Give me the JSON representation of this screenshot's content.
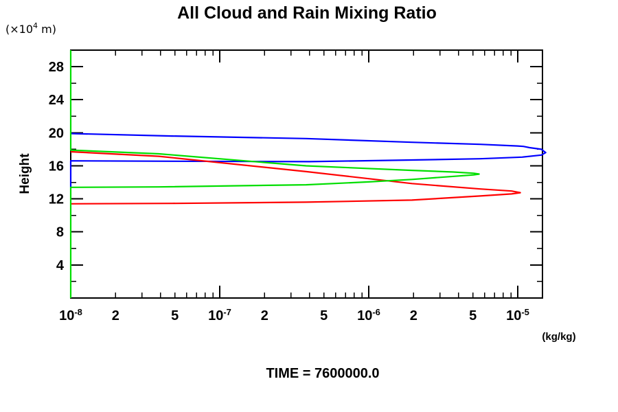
{
  "chart_data": {
    "type": "line",
    "title": "All Cloud and Rain Mixing Ratio",
    "ylabel": "Height",
    "y_axis_unit": {
      "pre": "(×10",
      "sup": "4",
      "post": " m)"
    },
    "x_unit_label": "(kg/kg)",
    "footer": "TIME = 7600000.0",
    "background_color": "#ffffff",
    "frame_color": "#000000",
    "x_axis": {
      "scale": "log",
      "min": 1e-08,
      "max": 1.47e-05,
      "decade_exponents": [
        -8,
        -7,
        -6,
        -5
      ],
      "minor_multipliers": [
        2,
        3,
        4,
        5,
        6,
        7,
        8,
        9
      ],
      "labeled_minor_multipliers": [
        2,
        5
      ],
      "grid": false
    },
    "y_axis": {
      "min": 0,
      "max": 30,
      "major_ticks": [
        4,
        8,
        12,
        16,
        20,
        24,
        28
      ],
      "minor_ticks": [
        2,
        6,
        10,
        14,
        18,
        22,
        26
      ],
      "grid": false
    },
    "legend": "none",
    "series": [
      {
        "name": "blue-profile",
        "color": "#0000ff",
        "points": [
          [
            1e-08,
            13.4
          ],
          [
            1e-08,
            16.6
          ],
          [
            4.8e-08,
            16.55
          ],
          [
            4e-07,
            16.5
          ],
          [
            1.95e-06,
            16.7
          ],
          [
            5.6e-06,
            16.85
          ],
          [
            1.07e-05,
            17.05
          ],
          [
            1.44e-05,
            17.3
          ],
          [
            1.54e-05,
            17.6
          ],
          [
            1.44e-05,
            18.0
          ],
          [
            1.2e-05,
            18.2
          ],
          [
            1.09e-05,
            18.35
          ],
          [
            1e-05,
            18.4
          ],
          [
            5.6e-06,
            18.6
          ],
          [
            1.95e-06,
            18.85
          ],
          [
            3.8e-07,
            19.3
          ],
          [
            4.8e-08,
            19.6
          ],
          [
            1e-08,
            19.9
          ]
        ]
      },
      {
        "name": "red-profile",
        "color": "#ff0000",
        "points": [
          [
            1e-08,
            11.4
          ],
          [
            4.8e-08,
            11.45
          ],
          [
            3.8e-07,
            11.6
          ],
          [
            1.95e-06,
            11.85
          ],
          [
            5.6e-06,
            12.35
          ],
          [
            9.1e-06,
            12.6
          ],
          [
            1.04e-05,
            12.75
          ],
          [
            9.1e-06,
            12.95
          ],
          [
            5.6e-06,
            13.2
          ],
          [
            1.95e-06,
            13.85
          ],
          [
            3.8e-07,
            15.3
          ],
          [
            3.9e-08,
            17.15
          ],
          [
            1e-08,
            17.7
          ]
        ]
      },
      {
        "name": "green-profile",
        "color": "#00de00",
        "points": [
          [
            1e-08,
            0.0
          ],
          [
            1e-08,
            13.4
          ],
          [
            3.9e-08,
            13.45
          ],
          [
            3.8e-07,
            13.7
          ],
          [
            1e-06,
            14.05
          ],
          [
            1.95e-06,
            14.35
          ],
          [
            3e-06,
            14.6
          ],
          [
            5.07e-06,
            14.9
          ],
          [
            5.5e-06,
            15.0
          ],
          [
            5.07e-06,
            15.1
          ],
          [
            3.7e-06,
            15.25
          ],
          [
            1.95e-06,
            15.45
          ],
          [
            3.8e-07,
            16.0
          ],
          [
            3.9e-08,
            17.45
          ],
          [
            1e-08,
            17.9
          ],
          [
            1e-08,
            30.0
          ]
        ]
      }
    ]
  }
}
